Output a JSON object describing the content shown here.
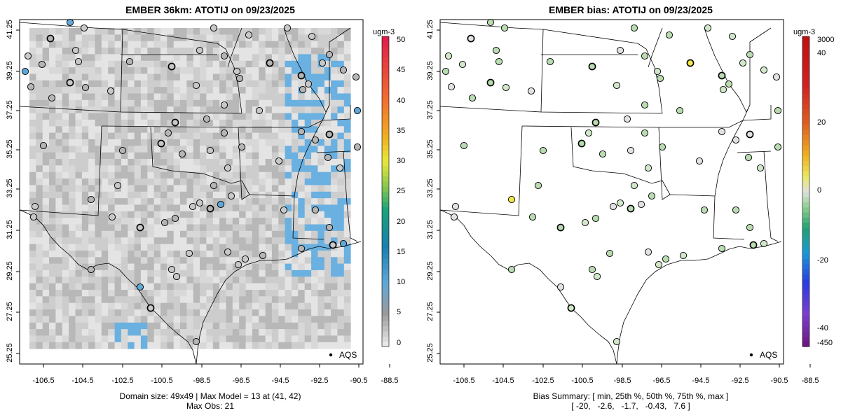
{
  "left": {
    "title": "EMBER 36km: ATOTIJ on 09/23/2025",
    "footer_line1": "Domain size: 49x49 | Max Model = 13 at (41, 42)",
    "footer_line2": "Max Obs: 21",
    "colorbar_title": "ugm-3",
    "colorbar_ticks": [
      "50",
      "45",
      "40",
      "35",
      "30",
      "25",
      "20",
      "15",
      "10",
      "5",
      "0"
    ],
    "legend_label": "AQS"
  },
  "right": {
    "title": "EMBER bias: ATOTIJ on 09/23/2025",
    "footer_line1": "Bias Summary: [ min, 25th %, 50th %, 75th %, max ]",
    "footer_line2": "[ -20,   -2.6,   -1.7,   -0.43,   7.6 ]",
    "colorbar_title": "ugm-3",
    "colorbar_ticks": [
      "3000",
      "40",
      "20",
      "0",
      "-20",
      "-40",
      "-450"
    ],
    "legend_label": "AQS"
  },
  "x_ticks": [
    "-106.5",
    "-104.5",
    "-102.5",
    "-100.5",
    "-98.5",
    "-96.5",
    "-94.5",
    "-92.5",
    "-90.5",
    "-88.5"
  ],
  "y_ticks": [
    "41.25",
    "39.25",
    "37.25",
    "35.25",
    "33.25",
    "31.25",
    "29.25",
    "27.25",
    "25.25"
  ],
  "colors": {
    "model_scale": [
      "#e6e6e6",
      "#b0b0b0",
      "#8a8a8a",
      "#6ab0e0",
      "#3fa0d8",
      "#1f7fb0",
      "#1aa39b",
      "#35b36a",
      "#8cc84b",
      "#ffe03a",
      "#ffb020",
      "#f07c20",
      "#e03a30",
      "#d0204a"
    ],
    "bias_scale": [
      "#6a1a80",
      "#7b3fd0",
      "#2a3ae0",
      "#1a9ad8",
      "#20a070",
      "#8fcf8f",
      "#d8d8d8",
      "#f2e84a",
      "#f0a020",
      "#e04020",
      "#c01010"
    ]
  }
}
